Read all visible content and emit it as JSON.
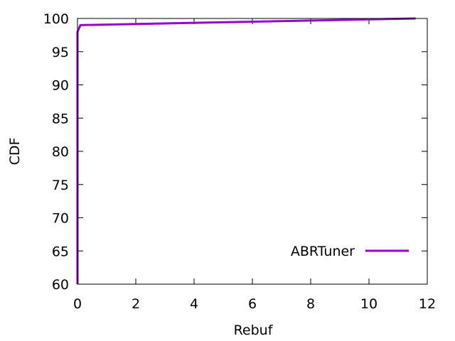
{
  "chart_data": {
    "type": "line",
    "xlabel": "Rebuf",
    "ylabel": "CDF",
    "xlim": [
      0,
      12
    ],
    "ylim": [
      60,
      100
    ],
    "x_ticks": [
      "0",
      "2",
      "4",
      "6",
      "8",
      "10",
      "12"
    ],
    "y_ticks": [
      "60",
      "65",
      "70",
      "75",
      "80",
      "85",
      "90",
      "95",
      "100"
    ],
    "grid": false,
    "legend_position": "bottom-right",
    "series": [
      {
        "name": "ABRTuner",
        "color": "#9400D3",
        "points": [
          [
            0,
            60
          ],
          [
            0,
            98
          ],
          [
            0.1,
            99
          ],
          [
            11.6,
            100
          ]
        ]
      }
    ]
  }
}
